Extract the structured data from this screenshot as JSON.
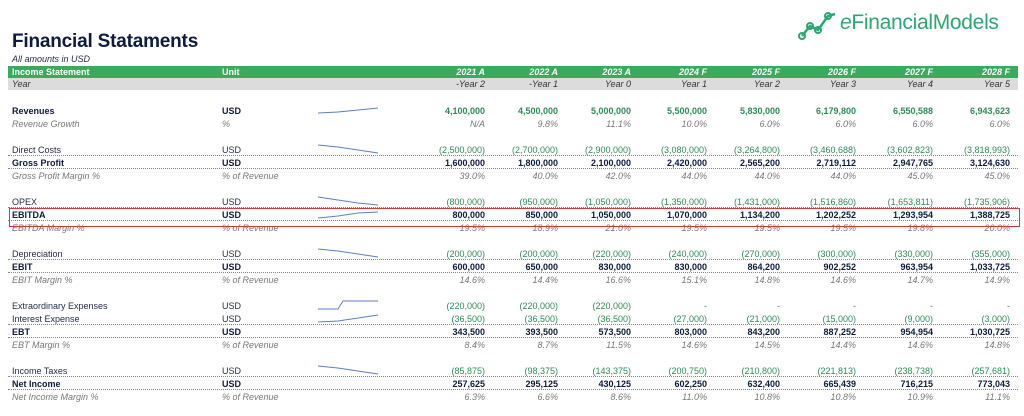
{
  "title": "Financial Stataments",
  "subtitle": "All amounts in USD",
  "logo": {
    "text_e": "e",
    "text_rest": "FinancialModels"
  },
  "header": {
    "label": "Income Statement",
    "unit": "Unit",
    "years": [
      "2021 A",
      "2022 A",
      "2023 A",
      "2024 F",
      "2025 F",
      "2026 F",
      "2027 F",
      "2028 F"
    ]
  },
  "subheader": {
    "label": "Year",
    "periods": [
      "-Year 2",
      "-Year 1",
      "Year 0",
      "Year 1",
      "Year 2",
      "Year 3",
      "Year 4",
      "Year 5"
    ]
  },
  "rows": [
    {
      "label": "Revenues",
      "unit": "USD",
      "values": [
        "4,100,000",
        "4,500,000",
        "5,000,000",
        "5,500,000",
        "5,830,000",
        "6,179,800",
        "6,550,588",
        "6,943,623"
      ]
    },
    {
      "label": "Revenue Growth",
      "unit": "%",
      "values": [
        "N/A",
        "9.8%",
        "11.1%",
        "10.0%",
        "6.0%",
        "6.0%",
        "6.0%",
        "6.0%"
      ]
    },
    {
      "label": "Direct Costs",
      "unit": "USD",
      "values": [
        "(2,500,000)",
        "(2,700,000)",
        "(2,900,000)",
        "(3,080,000)",
        "(3,264,800)",
        "(3,460,688)",
        "(3,602,823)",
        "(3,818,993)"
      ]
    },
    {
      "label": "Gross Profit",
      "unit": "USD",
      "values": [
        "1,600,000",
        "1,800,000",
        "2,100,000",
        "2,420,000",
        "2,565,200",
        "2,719,112",
        "2,947,765",
        "3,124,630"
      ]
    },
    {
      "label": "Gross Profit Margin %",
      "unit": "% of Revenue",
      "values": [
        "39.0%",
        "40.0%",
        "42.0%",
        "44.0%",
        "44.0%",
        "44.0%",
        "45.0%",
        "45.0%"
      ]
    },
    {
      "label": "OPEX",
      "unit": "USD",
      "values": [
        "(800,000)",
        "(950,000)",
        "(1,050,000)",
        "(1,350,000)",
        "(1,431,000)",
        "(1,516,860)",
        "(1,653,811)",
        "(1,735,906)"
      ]
    },
    {
      "label": "EBITDA",
      "unit": "USD",
      "values": [
        "800,000",
        "850,000",
        "1,050,000",
        "1,070,000",
        "1,134,200",
        "1,202,252",
        "1,293,954",
        "1,388,725"
      ]
    },
    {
      "label": "EBITDA Margin %",
      "unit": "% of Revenue",
      "values": [
        "19.5%",
        "18.9%",
        "21.0%",
        "19.5%",
        "19.5%",
        "19.5%",
        "19.8%",
        "20.0%"
      ]
    },
    {
      "label": "Depreciation",
      "unit": "USD",
      "values": [
        "(200,000)",
        "(200,000)",
        "(220,000)",
        "(240,000)",
        "(270,000)",
        "(300,000)",
        "(330,000)",
        "(355,000)"
      ]
    },
    {
      "label": "EBIT",
      "unit": "USD",
      "values": [
        "600,000",
        "650,000",
        "830,000",
        "830,000",
        "864,200",
        "902,252",
        "963,954",
        "1,033,725"
      ]
    },
    {
      "label": "EBIT Margin %",
      "unit": "% of Revenue",
      "values": [
        "14.6%",
        "14.4%",
        "16.6%",
        "15.1%",
        "14.8%",
        "14.6%",
        "14.7%",
        "14.9%"
      ]
    },
    {
      "label": "Extraordinary Expenses",
      "unit": "USD",
      "values": [
        "(220,000)",
        "(220,000)",
        "(220,000)",
        "-",
        "-",
        "-",
        "-",
        "-"
      ]
    },
    {
      "label": "Interest Expense",
      "unit": "USD",
      "values": [
        "(36,500)",
        "(36,500)",
        "(36,500)",
        "(27,000)",
        "(21,000)",
        "(15,000)",
        "(9,000)",
        "(3,000)"
      ]
    },
    {
      "label": "EBT",
      "unit": "USD",
      "values": [
        "343,500",
        "393,500",
        "573,500",
        "803,000",
        "843,200",
        "887,252",
        "954,954",
        "1,030,725"
      ]
    },
    {
      "label": "EBT Margin %",
      "unit": "% of Revenue",
      "values": [
        "8.4%",
        "8.7%",
        "11.5%",
        "14.6%",
        "14.5%",
        "14.4%",
        "14.6%",
        "14.8%"
      ]
    },
    {
      "label": "Income Taxes",
      "unit": "USD",
      "values": [
        "(85,875)",
        "(98,375)",
        "(143,375)",
        "(200,750)",
        "(210,800)",
        "(221,813)",
        "(238,738)",
        "(257,681)"
      ]
    },
    {
      "label": "Net Income",
      "unit": "USD",
      "values": [
        "257,625",
        "295,125",
        "430,125",
        "602,250",
        "632,400",
        "665,439",
        "716,215",
        "773,043"
      ]
    },
    {
      "label": "Net Income Margin %",
      "unit": "% of Revenue",
      "values": [
        "6.3%",
        "6.6%",
        "8.6%",
        "11.0%",
        "10.8%",
        "10.8%",
        "10.9%",
        "11.1%"
      ]
    }
  ],
  "colors": {
    "header_green": "#3aaa5c",
    "value_green": "#2e8b57",
    "highlight_red": "#d43a3a",
    "title_navy": "#0e1b3d"
  }
}
